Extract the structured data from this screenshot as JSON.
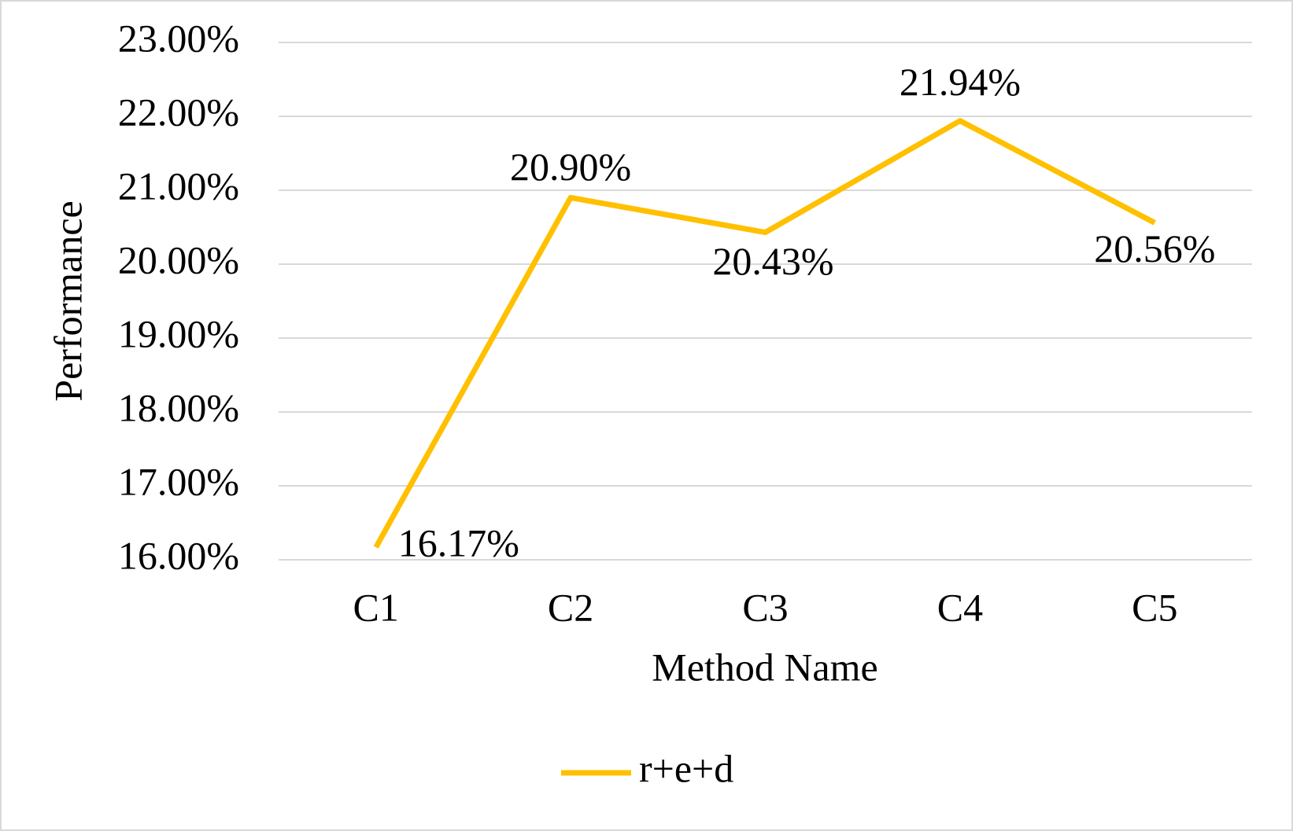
{
  "chart_data": {
    "type": "line",
    "x_label": "Method Name",
    "y_label": "Performance",
    "categories": [
      "C1",
      "C2",
      "C3",
      "C4",
      "C5"
    ],
    "series": [
      {
        "name": "r+e+d",
        "color": "#ffc000",
        "values": [
          16.17,
          20.9,
          20.43,
          21.94,
          20.56
        ],
        "value_labels": [
          "16.17%",
          "20.90%",
          "20.43%",
          "21.94%",
          "20.56%"
        ]
      }
    ],
    "ylim": [
      16,
      23
    ],
    "yticks": [
      {
        "value": 16,
        "label": "16.00%"
      },
      {
        "value": 17,
        "label": "17.00%"
      },
      {
        "value": 18,
        "label": "18.00%"
      },
      {
        "value": 19,
        "label": "19.00%"
      },
      {
        "value": 20,
        "label": "20.00%"
      },
      {
        "value": 21,
        "label": "21.00%"
      },
      {
        "value": 22,
        "label": "22.00%"
      },
      {
        "value": 23,
        "label": "23.00%"
      }
    ],
    "grid": true,
    "legend": "bottom"
  }
}
